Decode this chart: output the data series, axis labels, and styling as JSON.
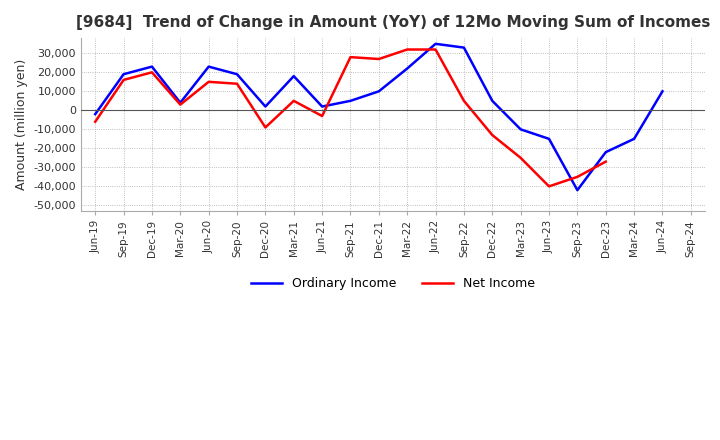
{
  "title": "[9684]  Trend of Change in Amount (YoY) of 12Mo Moving Sum of Incomes",
  "ylabel": "Amount (million yen)",
  "ylim": [
    -53000,
    38000
  ],
  "yticks": [
    -50000,
    -40000,
    -30000,
    -20000,
    -10000,
    0,
    10000,
    20000,
    30000
  ],
  "x_labels": [
    "Jun-19",
    "Sep-19",
    "Dec-19",
    "Mar-20",
    "Jun-20",
    "Sep-20",
    "Dec-20",
    "Mar-21",
    "Jun-21",
    "Sep-21",
    "Dec-21",
    "Mar-22",
    "Jun-22",
    "Sep-22",
    "Dec-22",
    "Mar-23",
    "Jun-23",
    "Sep-23",
    "Dec-23",
    "Mar-24",
    "Jun-24",
    "Sep-24"
  ],
  "ordinary_income": [
    -2000,
    19000,
    23000,
    4000,
    23000,
    19000,
    2000,
    18000,
    2000,
    5000,
    10000,
    22000,
    35000,
    33000,
    5000,
    -10000,
    -15000,
    -42000,
    -22000,
    -15000,
    10000,
    null
  ],
  "net_income": [
    -6000,
    16000,
    20000,
    3000,
    15000,
    14000,
    -9000,
    5000,
    -3000,
    28000,
    27000,
    32000,
    32000,
    5000,
    -13000,
    -25000,
    -40000,
    -35000,
    -27000,
    null,
    null,
    null
  ],
  "ordinary_color": "#0000ff",
  "net_color": "#ff0000",
  "background_color": "#ffffff",
  "grid_color": "#aaaaaa",
  "legend_ordinary": "Ordinary Income",
  "legend_net": "Net Income"
}
